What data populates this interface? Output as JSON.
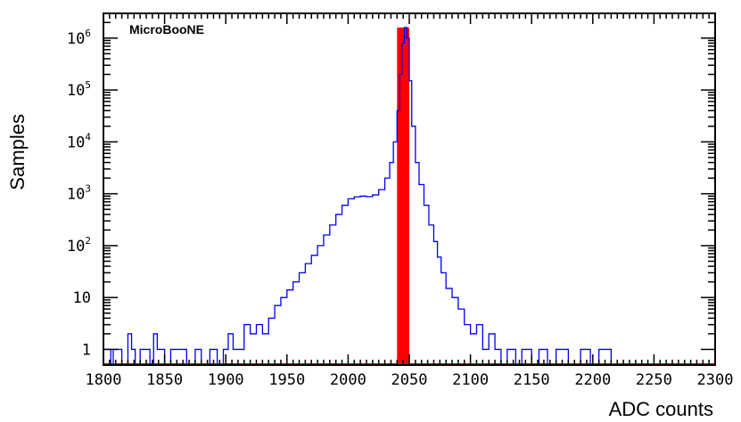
{
  "chart_data": {
    "type": "histogram",
    "experiment_label": "MicroBooNE",
    "xlabel": "ADC counts",
    "ylabel": "Samples",
    "xlim": [
      1800,
      2300
    ],
    "ylim": [
      0.5,
      3000000
    ],
    "y_scale": "log",
    "x_ticks": [
      1800,
      1850,
      1900,
      1950,
      2000,
      2050,
      2100,
      2150,
      2200,
      2250,
      2300
    ],
    "x_tick_labels": [
      "1800",
      "1850",
      "1900",
      "1950",
      "2000",
      "2050",
      "2100",
      "2150",
      "2200",
      "2250",
      "2300"
    ],
    "y_ticks": [
      {
        "value": 1,
        "base": "1",
        "exp": ""
      },
      {
        "value": 10,
        "base": "10",
        "exp": ""
      },
      {
        "value": 100,
        "base": "10",
        "exp": "2"
      },
      {
        "value": 1000,
        "base": "10",
        "exp": "3"
      },
      {
        "value": 10000,
        "base": "10",
        "exp": "4"
      },
      {
        "value": 100000,
        "base": "10",
        "exp": "5"
      },
      {
        "value": 1000000,
        "base": "10",
        "exp": "6"
      }
    ],
    "grid": false,
    "series": [
      {
        "style": "step-outline",
        "color": "#0000ee",
        "points": [
          [
            1800,
            1
          ],
          [
            1806,
            0.5
          ],
          [
            1808,
            1
          ],
          [
            1815,
            0.5
          ],
          [
            1820,
            2
          ],
          [
            1823,
            1
          ],
          [
            1826,
            0.5
          ],
          [
            1830,
            1
          ],
          [
            1838,
            0.5
          ],
          [
            1841,
            2
          ],
          [
            1844,
            1
          ],
          [
            1850,
            0.5
          ],
          [
            1855,
            1
          ],
          [
            1862,
            1
          ],
          [
            1868,
            0.5
          ],
          [
            1875,
            1
          ],
          [
            1880,
            0.5
          ],
          [
            1887,
            1
          ],
          [
            1893,
            0.5
          ],
          [
            1898,
            1
          ],
          [
            1902,
            2
          ],
          [
            1906,
            1
          ],
          [
            1910,
            1
          ],
          [
            1915,
            3
          ],
          [
            1920,
            2
          ],
          [
            1925,
            3
          ],
          [
            1930,
            2
          ],
          [
            1935,
            4
          ],
          [
            1940,
            7
          ],
          [
            1945,
            10
          ],
          [
            1950,
            14
          ],
          [
            1955,
            20
          ],
          [
            1960,
            30
          ],
          [
            1965,
            45
          ],
          [
            1970,
            65
          ],
          [
            1975,
            100
          ],
          [
            1980,
            160
          ],
          [
            1985,
            250
          ],
          [
            1990,
            400
          ],
          [
            1995,
            600
          ],
          [
            2000,
            800
          ],
          [
            2005,
            870
          ],
          [
            2010,
            900
          ],
          [
            2015,
            880
          ],
          [
            2020,
            950
          ],
          [
            2025,
            1200
          ],
          [
            2030,
            2000
          ],
          [
            2034,
            4000
          ],
          [
            2037,
            10000
          ],
          [
            2040,
            40000
          ],
          [
            2042,
            200000
          ],
          [
            2044,
            800000
          ],
          [
            2046,
            1600000
          ],
          [
            2048,
            1000000
          ],
          [
            2050,
            150000
          ],
          [
            2052,
            20000
          ],
          [
            2055,
            4000
          ],
          [
            2058,
            1500
          ],
          [
            2062,
            600
          ],
          [
            2066,
            250
          ],
          [
            2070,
            120
          ],
          [
            2073,
            60
          ],
          [
            2076,
            30
          ],
          [
            2080,
            15
          ],
          [
            2085,
            10
          ],
          [
            2090,
            6
          ],
          [
            2095,
            3
          ],
          [
            2100,
            2
          ],
          [
            2105,
            3
          ],
          [
            2110,
            1
          ],
          [
            2115,
            2
          ],
          [
            2120,
            1
          ],
          [
            2125,
            0.5
          ],
          [
            2130,
            1
          ],
          [
            2137,
            0.5
          ],
          [
            2142,
            1
          ],
          [
            2150,
            0.5
          ],
          [
            2156,
            1
          ],
          [
            2163,
            0.5
          ],
          [
            2170,
            1
          ],
          [
            2180,
            0.5
          ],
          [
            2190,
            1
          ],
          [
            2198,
            0.5
          ],
          [
            2205,
            1
          ],
          [
            2215,
            0.5
          ],
          [
            2228,
            0.5
          ],
          [
            2240,
            0.5
          ],
          [
            2254,
            0.5
          ],
          [
            2266,
            0.5
          ],
          [
            2280,
            0.5
          ],
          [
            2290,
            0.5
          ],
          [
            2300,
            0.5
          ]
        ]
      },
      {
        "style": "filled-band",
        "color": "#ff0000",
        "x_range": [
          2040,
          2050
        ],
        "peak": 1600000
      }
    ]
  }
}
